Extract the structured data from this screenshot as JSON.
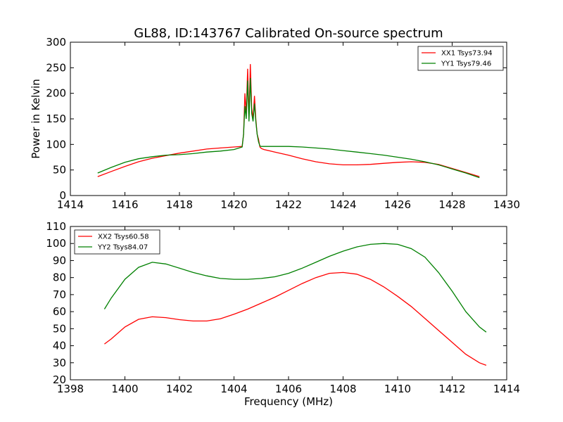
{
  "chart_data": [
    {
      "type": "line",
      "title": "GL88, ID:143767 Calibrated On-source spectrum",
      "xlabel": "",
      "ylabel": "Power in Kelvin",
      "xlim": [
        1414,
        1430
      ],
      "ylim": [
        0,
        300
      ],
      "xticks": [
        "1414",
        "1416",
        "1418",
        "1420",
        "1422",
        "1424",
        "1426",
        "1428",
        "1430"
      ],
      "yticks": [
        "0",
        "50",
        "100",
        "150",
        "200",
        "250",
        "300"
      ],
      "legend_position": "top-right",
      "series": [
        {
          "name": "XX1 Tsys73.94",
          "color": "#ff0000",
          "x": [
            1415.0,
            1415.5,
            1416.0,
            1416.5,
            1417.0,
            1417.5,
            1418.0,
            1418.5,
            1419.0,
            1419.5,
            1420.0,
            1420.3,
            1420.35,
            1420.4,
            1420.45,
            1420.5,
            1420.55,
            1420.6,
            1420.65,
            1420.7,
            1420.75,
            1420.8,
            1420.85,
            1420.9,
            1420.95,
            1421.0,
            1421.1,
            1421.5,
            1422.0,
            1422.5,
            1423.0,
            1423.5,
            1424.0,
            1424.5,
            1425.0,
            1425.5,
            1426.0,
            1426.5,
            1427.0,
            1427.5,
            1428.0,
            1428.5,
            1429.0
          ],
          "y": [
            37,
            47,
            57,
            66,
            73,
            78,
            83,
            87,
            91,
            93,
            95,
            96,
            120,
            200,
            160,
            248,
            150,
            257,
            170,
            150,
            195,
            150,
            120,
            110,
            95,
            92,
            90,
            85,
            79,
            72,
            66,
            62,
            60,
            60,
            61,
            63,
            65,
            66,
            65,
            61,
            53,
            45,
            37
          ]
        },
        {
          "name": "YY1 Tsys79.46",
          "color": "#008000",
          "x": [
            1415.0,
            1415.5,
            1416.0,
            1416.5,
            1417.0,
            1417.5,
            1418.0,
            1418.5,
            1419.0,
            1419.5,
            1420.0,
            1420.3,
            1420.35,
            1420.4,
            1420.45,
            1420.5,
            1420.55,
            1420.6,
            1420.65,
            1420.7,
            1420.75,
            1420.8,
            1420.85,
            1420.9,
            1420.95,
            1421.0,
            1421.1,
            1421.5,
            1422.0,
            1422.5,
            1423.0,
            1423.5,
            1424.0,
            1424.5,
            1425.0,
            1425.5,
            1426.0,
            1426.5,
            1427.0,
            1427.5,
            1428.0,
            1428.5,
            1429.0
          ],
          "y": [
            44,
            55,
            65,
            72,
            76,
            79,
            80,
            82,
            85,
            87,
            90,
            95,
            120,
            175,
            150,
            225,
            145,
            230,
            160,
            145,
            180,
            145,
            120,
            105,
            97,
            96,
            96,
            96,
            96,
            95,
            93,
            91,
            88,
            85,
            82,
            79,
            75,
            71,
            66,
            60,
            52,
            44,
            35
          ]
        }
      ]
    },
    {
      "type": "line",
      "title": "",
      "xlabel": "Frequency (MHz)",
      "ylabel": "",
      "xlim": [
        1398,
        1414
      ],
      "ylim": [
        20,
        110
      ],
      "xticks": [
        "1398",
        "1400",
        "1402",
        "1404",
        "1406",
        "1408",
        "1410",
        "1412",
        "1414"
      ],
      "yticks": [
        "20",
        "30",
        "40",
        "50",
        "60",
        "70",
        "80",
        "90",
        "100",
        "110"
      ],
      "legend_position": "top-left",
      "series": [
        {
          "name": "XX2 Tsys60.58",
          "color": "#ff0000",
          "x": [
            1399.25,
            1399.5,
            1400.0,
            1400.5,
            1401.0,
            1401.5,
            1402.0,
            1402.5,
            1403.0,
            1403.5,
            1404.0,
            1404.5,
            1405.0,
            1405.5,
            1406.0,
            1406.5,
            1407.0,
            1407.5,
            1408.0,
            1408.5,
            1409.0,
            1409.5,
            1410.0,
            1410.5,
            1411.0,
            1411.5,
            1412.0,
            1412.5,
            1413.0,
            1413.25
          ],
          "y": [
            41,
            44,
            51,
            55.5,
            57,
            56.5,
            55.3,
            54.5,
            54.5,
            55.8,
            58.5,
            61.5,
            65,
            68.5,
            72.5,
            76.5,
            80,
            82.5,
            83,
            82,
            79,
            74.5,
            69,
            63,
            56,
            49,
            42,
            35,
            30,
            28.5
          ]
        },
        {
          "name": "YY2 Tsys84.07",
          "color": "#008000",
          "x": [
            1399.25,
            1399.5,
            1400.0,
            1400.5,
            1401.0,
            1401.5,
            1402.0,
            1402.5,
            1403.0,
            1403.5,
            1404.0,
            1404.5,
            1405.0,
            1405.5,
            1406.0,
            1406.5,
            1407.0,
            1407.5,
            1408.0,
            1408.5,
            1409.0,
            1409.5,
            1410.0,
            1410.5,
            1411.0,
            1411.5,
            1412.0,
            1412.5,
            1413.0,
            1413.25
          ],
          "y": [
            61.5,
            68,
            79,
            86,
            89,
            88,
            85.5,
            83,
            81,
            79.5,
            79,
            79,
            79.5,
            80.5,
            82.5,
            85.5,
            89,
            92.5,
            95.5,
            98,
            99.5,
            100,
            99.5,
            97,
            92,
            83,
            72,
            60,
            51,
            48
          ]
        }
      ]
    }
  ]
}
